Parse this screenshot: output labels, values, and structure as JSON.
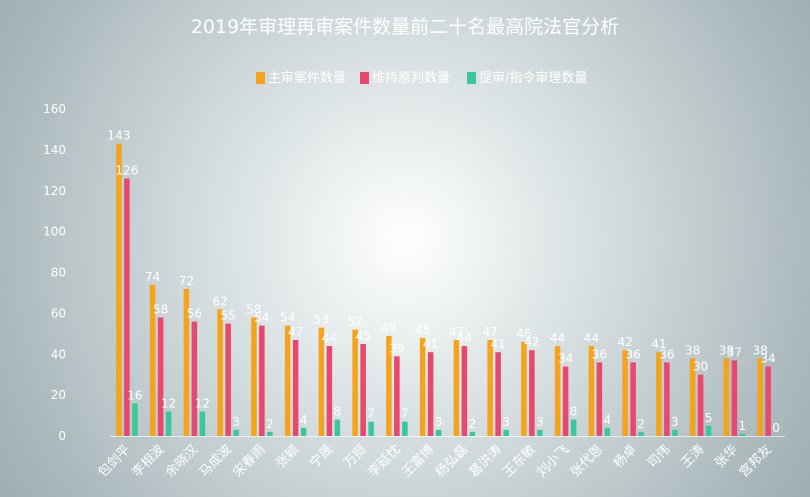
{
  "chart_data": {
    "type": "bar",
    "title": "2019年审理再审案件数量前二十名最高院法官分析",
    "categories": [
      "包剑平",
      "李相波",
      "余晓汉",
      "马成波",
      "宋春雨",
      "张颖",
      "宁晟",
      "万挺",
      "李延忱",
      "王富博",
      "杨弘磊",
      "葛洪涛",
      "王东敏",
      "刘小飞",
      "张代恩",
      "杨卓",
      "司伟",
      "王涛",
      "张华",
      "宫邦友"
    ],
    "series": [
      {
        "name": "主审案件数量",
        "color": "#f5a31a",
        "values": [
          143,
          74,
          72,
          62,
          58,
          54,
          53,
          52,
          49,
          48,
          47,
          47,
          46,
          44,
          44,
          42,
          41,
          38,
          38,
          38
        ]
      },
      {
        "name": "维持原判数量",
        "color": "#e8476e",
        "values": [
          126,
          58,
          56,
          55,
          54,
          47,
          44,
          45,
          39,
          41,
          44,
          41,
          42,
          34,
          36,
          36,
          36,
          30,
          37,
          34
        ]
      },
      {
        "name": "提审/指令审理数量",
        "color": "#3cc79a",
        "values": [
          16,
          12,
          12,
          3,
          2,
          4,
          8,
          7,
          7,
          3,
          2,
          3,
          3,
          8,
          4,
          2,
          3,
          5,
          1,
          0
        ]
      }
    ],
    "ylim": [
      0,
      160
    ],
    "yticks": [
      0,
      20,
      40,
      60,
      80,
      100,
      120,
      140,
      160
    ],
    "grid": false,
    "legend_position": "top"
  }
}
